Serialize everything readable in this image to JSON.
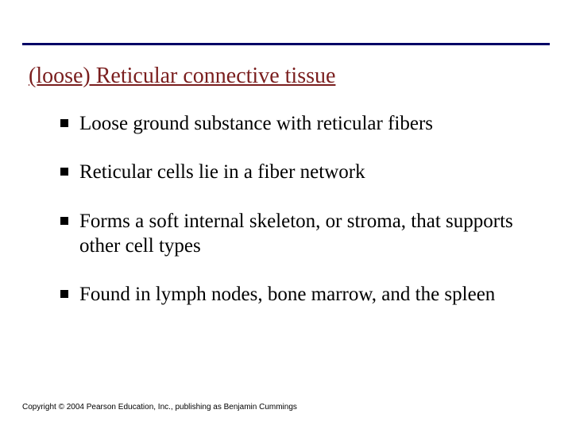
{
  "colors": {
    "rule": "#000066",
    "title": "#7a1e1e",
    "bullet_square": "#000000",
    "body_text": "#000000",
    "background": "#ffffff"
  },
  "title": "(loose) Reticular connective tissue",
  "bullets": [
    "Loose ground substance with reticular fibers",
    "Reticular cells lie in a fiber network",
    "Forms a soft internal skeleton, or stroma, that supports other cell types",
    "Found in lymph nodes, bone marrow, and the spleen"
  ],
  "copyright": "Copyright © 2004 Pearson Education, Inc., publishing as Benjamin Cummings"
}
